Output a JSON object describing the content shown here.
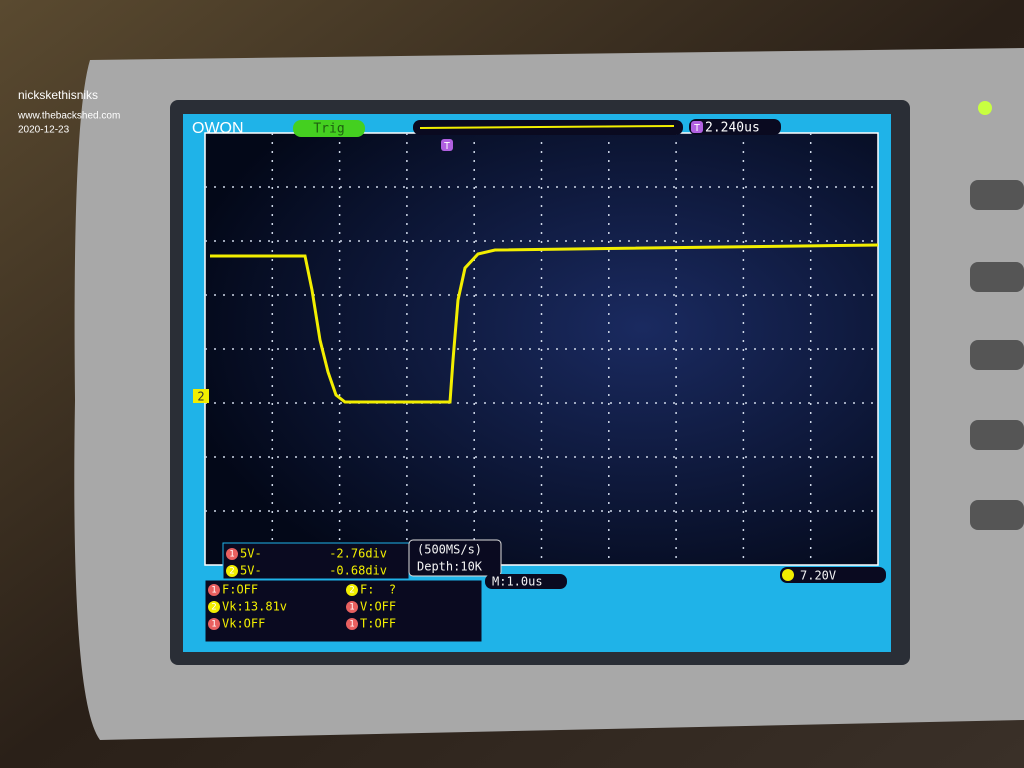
{
  "watermark": {
    "author": "nickskethisniks",
    "site": "www.thebackshed.com",
    "date": "2020-12-23"
  },
  "scope": {
    "brand": "OWON",
    "trigger_status": "Trig",
    "trigger_marker": "T",
    "trigger_position": "2.240us",
    "channel_marker": "2",
    "channels": [
      {
        "num": "1",
        "scale": "5V-",
        "offset": "-2.76div"
      },
      {
        "num": "2",
        "scale": "5V-",
        "offset": "-0.68div"
      }
    ],
    "sample_rate": "(500MS/s)",
    "depth": "Depth:10K",
    "timebase": "M:1.0us",
    "trigger_level": "7.20V",
    "measurements": [
      {
        "num": "1",
        "text": "F:OFF"
      },
      {
        "num": "2",
        "text": "Vk:13.81v"
      },
      {
        "num": "1",
        "text": "Vk:OFF"
      },
      {
        "num": "2",
        "text": "F:  ?"
      },
      {
        "num": "1",
        "text": "V:OFF"
      },
      {
        "num": "1",
        "text": "T:OFF"
      }
    ]
  }
}
